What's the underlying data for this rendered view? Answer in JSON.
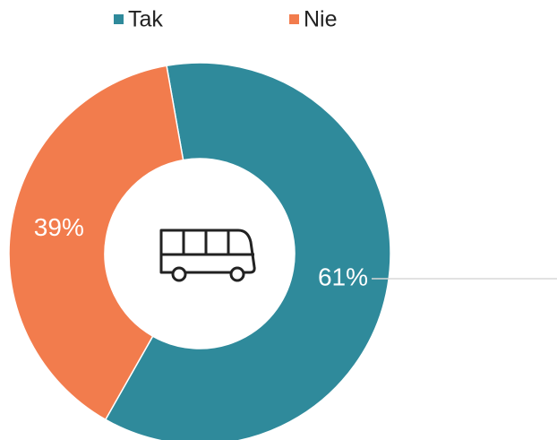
{
  "chart_data": {
    "type": "donut",
    "series": [
      {
        "name": "Tak",
        "color": "#2f8a9b"
      },
      {
        "name": "Nie",
        "color": "#f27c4d"
      }
    ],
    "values": [
      61,
      39
    ],
    "value_labels": [
      "61%",
      "39%"
    ],
    "legend": "top"
  }
}
